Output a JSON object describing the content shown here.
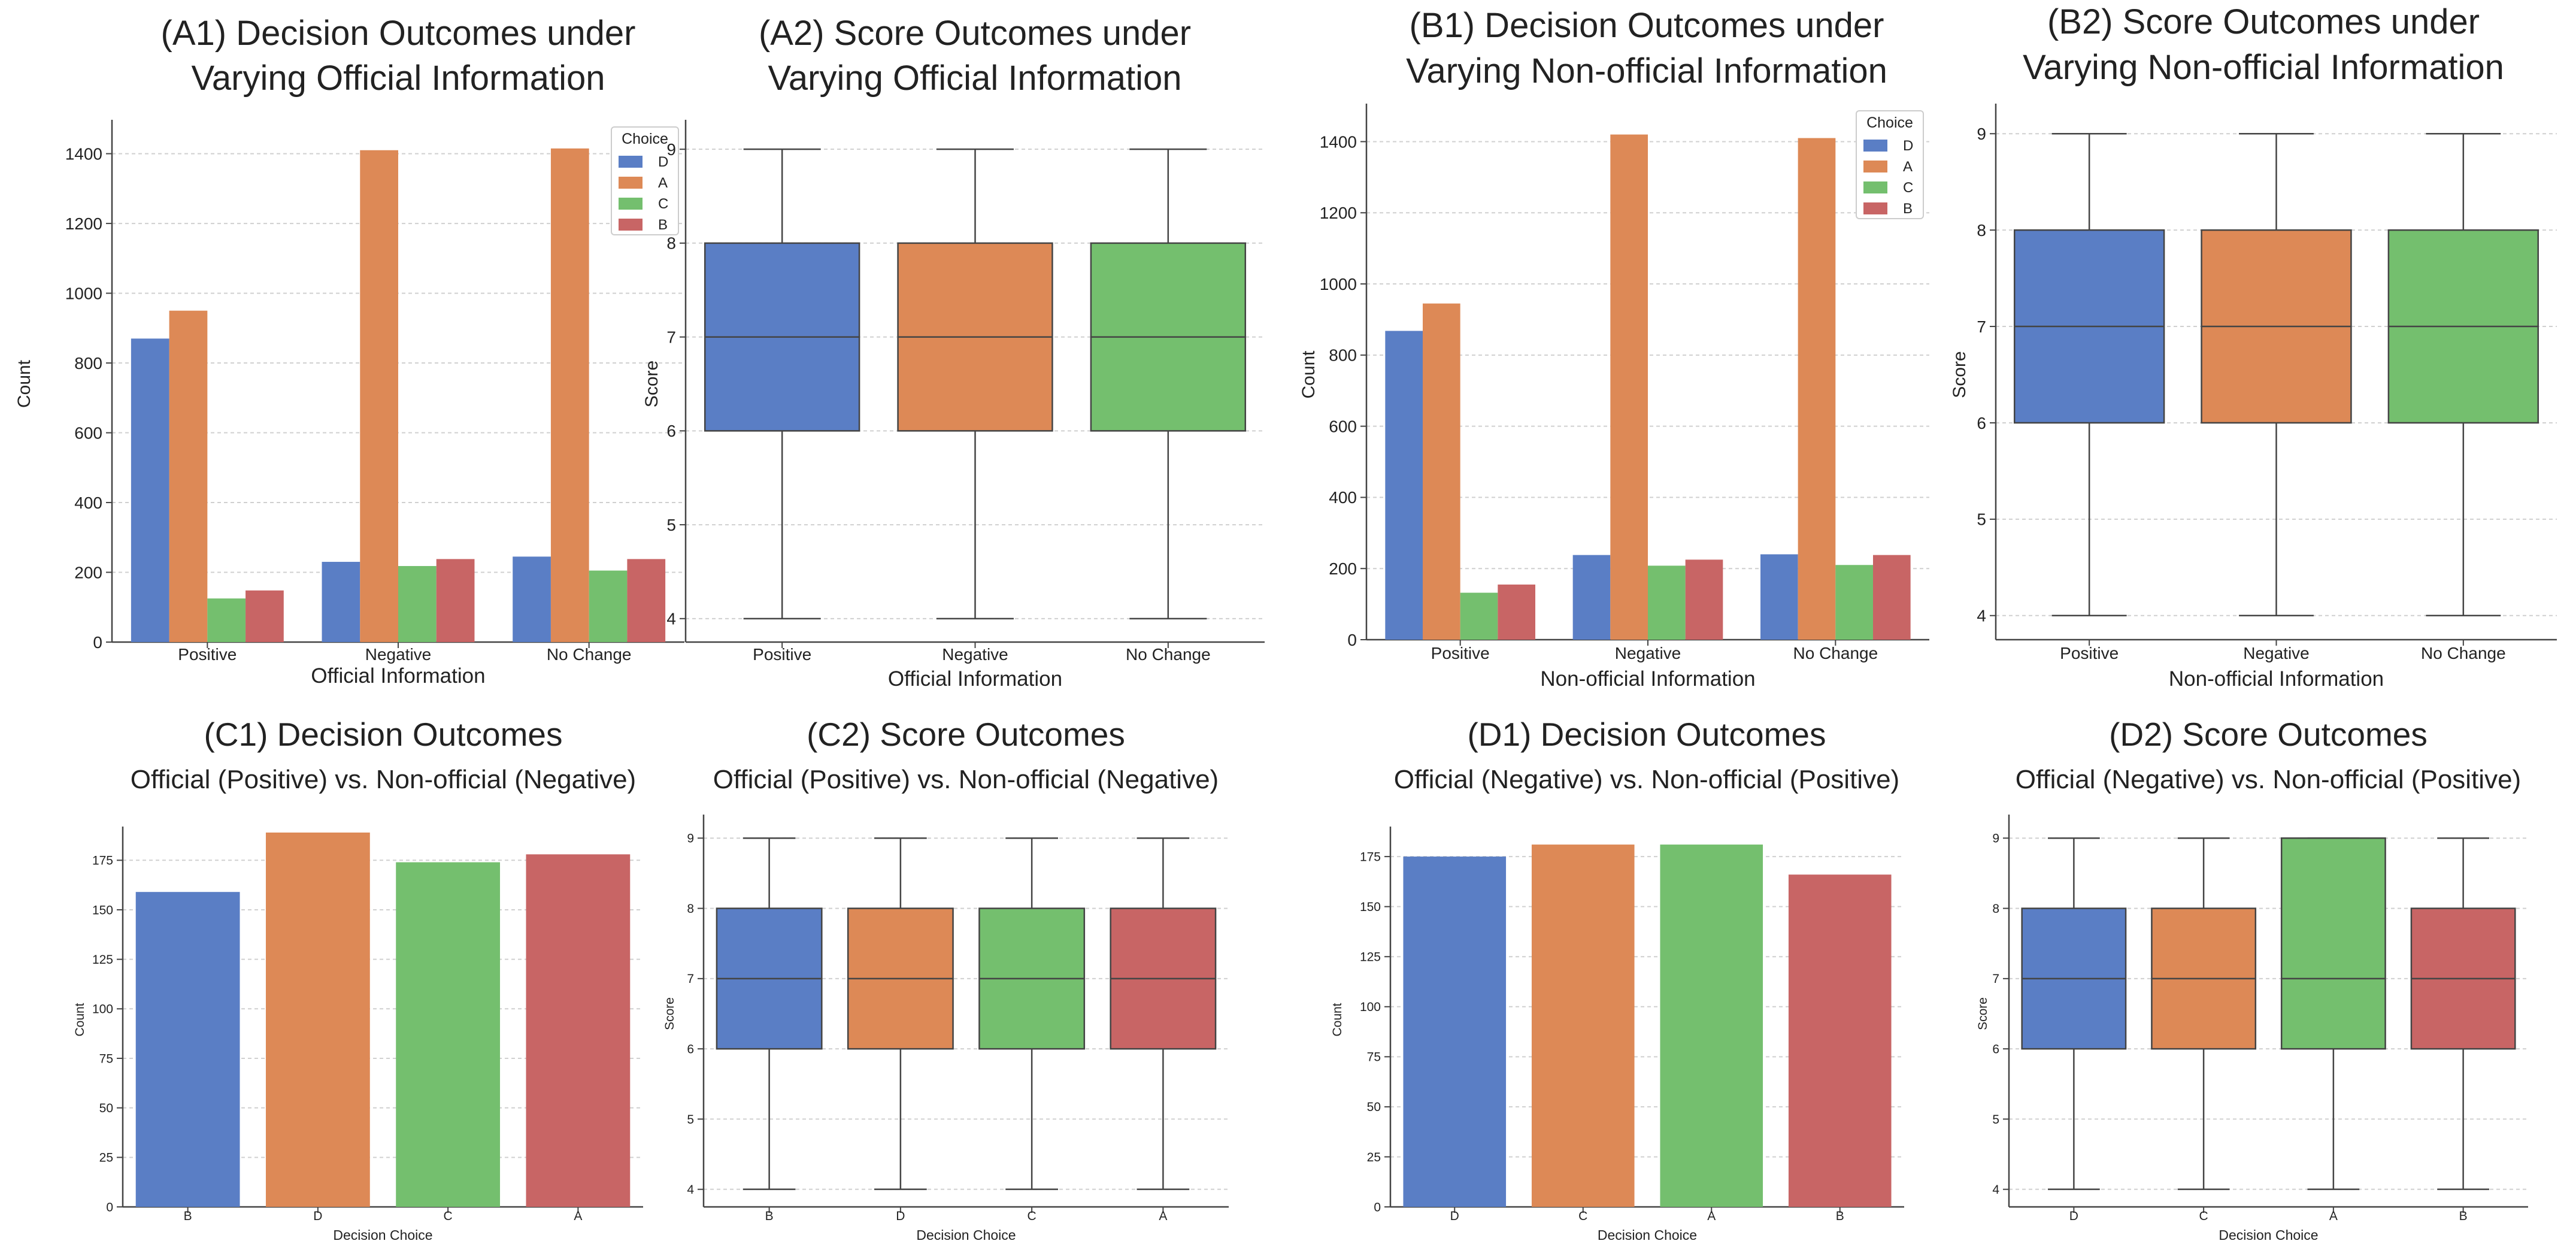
{
  "palette": {
    "D": "#5A7EC5",
    "A": "#DD8956",
    "C": "#74BF6E",
    "B": "#C86565",
    "grid": "#D0D0D0",
    "axis": "#444444"
  },
  "chart_data": [
    {
      "id": "A1",
      "type": "bar",
      "title": [
        "(A1) Decision Outcomes under",
        "Varying Official Information"
      ],
      "xlabel": "Official Information",
      "ylabel": "Count",
      "categories": [
        "Positive",
        "Negative",
        "No Change"
      ],
      "series": [
        {
          "name": "D",
          "values": [
            870,
            230,
            245
          ]
        },
        {
          "name": "A",
          "values": [
            950,
            1410,
            1415
          ]
        },
        {
          "name": "C",
          "values": [
            125,
            218,
            205
          ]
        },
        {
          "name": "B",
          "values": [
            148,
            238,
            238
          ]
        }
      ],
      "ylim": [
        0,
        1480
      ],
      "yticks": [
        0,
        200,
        400,
        600,
        800,
        1000,
        1200,
        1400
      ],
      "legend": {
        "title": "Choice",
        "placement": "top-right"
      },
      "grid": true
    },
    {
      "id": "A2",
      "type": "box",
      "title": [
        "(A2) Score Outcomes under",
        "Varying Official Information"
      ],
      "xlabel": "Official Information",
      "ylabel": "Score",
      "categories": [
        "Positive",
        "Negative",
        "No Change"
      ],
      "colors": [
        "D",
        "A",
        "C"
      ],
      "boxes": [
        {
          "min": 4,
          "q1": 6,
          "median": 7,
          "q3": 8,
          "max": 9
        },
        {
          "min": 4,
          "q1": 6,
          "median": 7,
          "q3": 8,
          "max": 9
        },
        {
          "min": 4,
          "q1": 6,
          "median": 7,
          "q3": 8,
          "max": 9
        }
      ],
      "ylim": [
        3.75,
        9.25
      ],
      "yticks": [
        4,
        5,
        6,
        7,
        8,
        9
      ],
      "grid": true
    },
    {
      "id": "B1",
      "type": "bar",
      "title": [
        "(B1) Decision Outcomes under",
        "Varying Non-official Information"
      ],
      "xlabel": "Non-official Information",
      "ylabel": "Count",
      "categories": [
        "Positive",
        "Negative",
        "No Change"
      ],
      "series": [
        {
          "name": "D",
          "values": [
            868,
            238,
            240
          ]
        },
        {
          "name": "A",
          "values": [
            945,
            1420,
            1410
          ]
        },
        {
          "name": "C",
          "values": [
            132,
            208,
            210
          ]
        },
        {
          "name": "B",
          "values": [
            155,
            225,
            238
          ]
        }
      ],
      "ylim": [
        0,
        1490
      ],
      "yticks": [
        0,
        200,
        400,
        600,
        800,
        1000,
        1200,
        1400
      ],
      "legend": {
        "title": "Choice",
        "placement": "top-right"
      },
      "grid": true
    },
    {
      "id": "B2",
      "type": "box",
      "title": [
        "(B2) Score Outcomes under",
        "Varying Non-official Information"
      ],
      "xlabel": "Non-official Information",
      "ylabel": "Score",
      "categories": [
        "Positive",
        "Negative",
        "No Change"
      ],
      "colors": [
        "D",
        "A",
        "C"
      ],
      "boxes": [
        {
          "min": 4,
          "q1": 6,
          "median": 7,
          "q3": 8,
          "max": 9
        },
        {
          "min": 4,
          "q1": 6,
          "median": 7,
          "q3": 8,
          "max": 9
        },
        {
          "min": 4,
          "q1": 6,
          "median": 7,
          "q3": 8,
          "max": 9
        }
      ],
      "ylim": [
        3.75,
        9.25
      ],
      "yticks": [
        4,
        5,
        6,
        7,
        8,
        9
      ],
      "grid": true
    },
    {
      "id": "C1",
      "type": "bar",
      "title": [
        "(C1) Decision Outcomes",
        "Official (Positive) vs. Non-official (Negative)"
      ],
      "xlabel": "Decision Choice",
      "ylabel": "Count",
      "categories": [
        "B",
        "D",
        "C",
        "A"
      ],
      "values": [
        159,
        189,
        174,
        178
      ],
      "colors": [
        "D",
        "A",
        "C",
        "B"
      ],
      "ylim": [
        0,
        189
      ],
      "yticks": [
        0,
        25,
        50,
        75,
        100,
        125,
        150,
        175
      ],
      "grid": true
    },
    {
      "id": "C2",
      "type": "box",
      "title": [
        "(C2) Score Outcomes",
        "Official (Positive) vs. Non-official (Negative)"
      ],
      "xlabel": "Decision Choice",
      "ylabel": "Score",
      "categories": [
        "B",
        "D",
        "C",
        "A"
      ],
      "colors": [
        "D",
        "A",
        "C",
        "B"
      ],
      "boxes": [
        {
          "min": 4,
          "q1": 6,
          "median": 7,
          "q3": 8,
          "max": 9
        },
        {
          "min": 4,
          "q1": 6,
          "median": 7,
          "q3": 8,
          "max": 9
        },
        {
          "min": 4,
          "q1": 6,
          "median": 7,
          "q3": 8,
          "max": 9
        },
        {
          "min": 4,
          "q1": 6,
          "median": 7,
          "q3": 8,
          "max": 9
        }
      ],
      "ylim": [
        3.75,
        9.25
      ],
      "yticks": [
        4,
        5,
        6,
        7,
        8,
        9
      ],
      "grid": true
    },
    {
      "id": "D1",
      "type": "bar",
      "title": [
        "(D1) Decision Outcomes",
        "Official (Negative) vs. Non-official (Positive)"
      ],
      "xlabel": "Decision Choice",
      "ylabel": "Count",
      "categories": [
        "D",
        "C",
        "A",
        "B"
      ],
      "values": [
        175,
        181,
        181,
        166
      ],
      "colors": [
        "D",
        "A",
        "C",
        "B"
      ],
      "ylim": [
        0,
        187
      ],
      "yticks": [
        0,
        25,
        50,
        75,
        100,
        125,
        150,
        175
      ],
      "grid": true
    },
    {
      "id": "D2",
      "type": "box",
      "title": [
        "(D2) Score Outcomes",
        "Official (Negative) vs. Non-official (Positive)"
      ],
      "xlabel": "Decision Choice",
      "ylabel": "Score",
      "categories": [
        "D",
        "C",
        "A",
        "B"
      ],
      "colors": [
        "D",
        "A",
        "C",
        "B"
      ],
      "boxes": [
        {
          "min": 4,
          "q1": 6,
          "median": 7,
          "q3": 8,
          "max": 9
        },
        {
          "min": 4,
          "q1": 6,
          "median": 7,
          "q3": 8,
          "max": 9
        },
        {
          "min": 4,
          "q1": 6,
          "median": 7,
          "q3": 9,
          "max": 9
        },
        {
          "min": 4,
          "q1": 6,
          "median": 7,
          "q3": 8,
          "max": 9
        }
      ],
      "ylim": [
        3.75,
        9.25
      ],
      "yticks": [
        4,
        5,
        6,
        7,
        8,
        9
      ],
      "grid": true
    }
  ]
}
